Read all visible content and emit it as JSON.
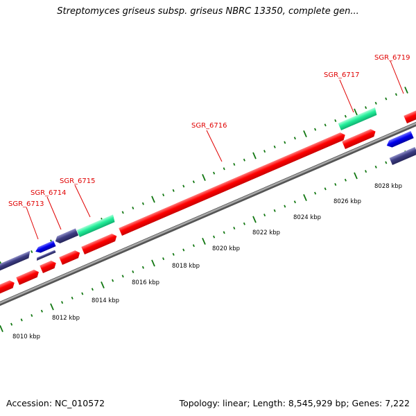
{
  "title": "Streptomyces griseus subsp. griseus NBRC 13350, complete gen...",
  "footer": {
    "accession": "Accession: NC_010572",
    "summary": "Topology: linear; Length: 8,545,929 bp; Genes: 7,222"
  },
  "colors": {
    "forward_gene": "#ff0000",
    "reverse_gene_blue": "#0000ee",
    "reverse_gene_slate": "#3c3c82",
    "rna_gene": "#22ee99",
    "backbone": "#808080",
    "ticks": "#117711",
    "label": "#e00000"
  },
  "scale": {
    "unit": "kbp",
    "labels": [
      "8010 kbp",
      "8012 kbp",
      "8014 kbp",
      "8016 kbp",
      "8018 kbp",
      "8020 kbp",
      "8022 kbp",
      "8024 kbp",
      "8026 kbp",
      "8028 kbp"
    ]
  },
  "gene_labels": [
    "SGR_6713",
    "SGR_6714",
    "SGR_6715",
    "SGR_6716",
    "SGR_6717",
    "SGR_6719"
  ]
}
